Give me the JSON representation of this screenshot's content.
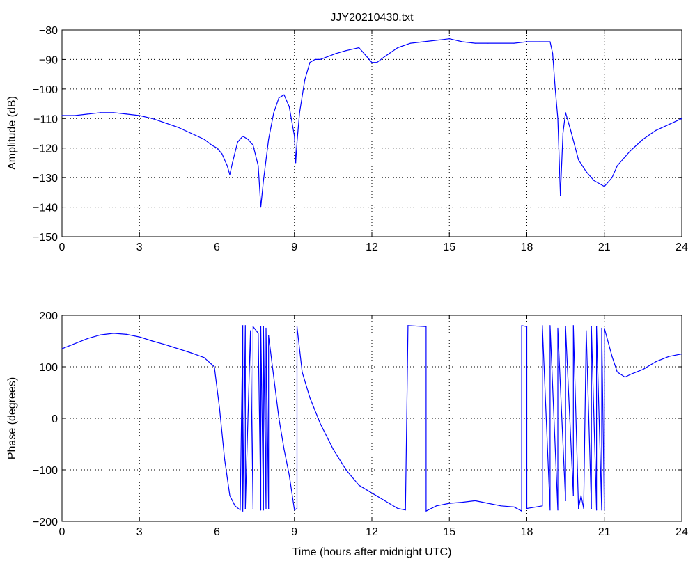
{
  "figure_title": "JJY20210430.txt",
  "colors": {
    "series": "#0000ff",
    "axes": "#000000",
    "background": "#ffffff"
  },
  "chart_data": [
    {
      "type": "line",
      "title": "JJY20210430.txt",
      "xlabel": "",
      "ylabel": "Amplitude (dB)",
      "xlim": [
        0,
        24
      ],
      "ylim": [
        -150,
        -80
      ],
      "xticks": [
        0,
        3,
        6,
        9,
        12,
        15,
        18,
        21,
        24
      ],
      "yticks": [
        -80,
        -90,
        -100,
        -110,
        -120,
        -130,
        -140,
        -150
      ],
      "xtick_labels": [
        "0",
        "3",
        "6",
        "9",
        "12",
        "15",
        "18",
        "21",
        "24"
      ],
      "ytick_labels": [
        "−80",
        "−90",
        "−100",
        "−110",
        "−120",
        "−130",
        "−140",
        "−150"
      ],
      "grid": true,
      "series": [
        {
          "color": "#0000ff",
          "x": [
            0,
            0.5,
            1,
            1.5,
            2,
            2.5,
            3,
            3.5,
            4,
            4.5,
            5,
            5.5,
            5.8,
            6.0,
            6.2,
            6.4,
            6.5,
            6.6,
            6.8,
            7.0,
            7.2,
            7.4,
            7.6,
            7.7,
            7.8,
            8.0,
            8.2,
            8.4,
            8.6,
            8.8,
            9.0,
            9.05,
            9.1,
            9.2,
            9.4,
            9.6,
            9.8,
            10.0,
            10.3,
            10.6,
            11.0,
            11.5,
            12.0,
            12.2,
            12.5,
            13.0,
            13.5,
            14.0,
            14.5,
            15.0,
            15.5,
            16.0,
            16.5,
            17.0,
            17.5,
            18.0,
            18.5,
            18.9,
            19.0,
            19.1,
            19.2,
            19.3,
            19.4,
            19.5,
            19.7,
            20.0,
            20.3,
            20.6,
            21.0,
            21.3,
            21.5,
            22.0,
            22.5,
            23.0,
            23.5,
            24.0
          ],
          "values": [
            -109,
            -109,
            -108.5,
            -108,
            -108,
            -108.5,
            -109,
            -110,
            -111.5,
            -113,
            -115,
            -117,
            -119,
            -120,
            -122,
            -126,
            -129,
            -125,
            -118,
            -116,
            -117,
            -119,
            -126,
            -140,
            -131,
            -117,
            -108,
            -103,
            -102,
            -106,
            -116,
            -125,
            -118,
            -108,
            -97,
            -91,
            -90,
            -90,
            -89,
            -88,
            -87,
            -86,
            -91,
            -91,
            -89,
            -86,
            -84.5,
            -84,
            -83.5,
            -83,
            -84,
            -84.5,
            -84.5,
            -84.5,
            -84.5,
            -84,
            -84,
            -84,
            -88,
            -100,
            -110,
            -136,
            -115,
            -108,
            -114,
            -124,
            -128,
            -131,
            -133,
            -130,
            -126,
            -121,
            -117,
            -114,
            -112,
            -110
          ]
        }
      ]
    },
    {
      "type": "line",
      "title": "",
      "xlabel": "Time (hours after midnight UTC)",
      "ylabel": "Phase (degrees)",
      "xlim": [
        0,
        24
      ],
      "ylim": [
        -200,
        200
      ],
      "xticks": [
        0,
        3,
        6,
        9,
        12,
        15,
        18,
        21,
        24
      ],
      "yticks": [
        200,
        100,
        0,
        -100,
        -200
      ],
      "xtick_labels": [
        "0",
        "3",
        "6",
        "9",
        "12",
        "15",
        "18",
        "21",
        "24"
      ],
      "ytick_labels": [
        "200",
        "100",
        "0",
        "−100",
        "−200"
      ],
      "grid": true,
      "series": [
        {
          "color": "#0000ff",
          "x": [
            0,
            0.5,
            1,
            1.5,
            2,
            2.5,
            3,
            3.5,
            4,
            4.5,
            5,
            5.5,
            5.9,
            6.1,
            6.3,
            6.5,
            6.7,
            6.9,
            7.0,
            7.0,
            7.1,
            7.1,
            7.3,
            7.4,
            7.4,
            7.6,
            7.7,
            7.7,
            7.8,
            7.8,
            7.9,
            7.9,
            8.0,
            8.0,
            8.2,
            8.4,
            8.6,
            8.8,
            9.0,
            9.1,
            9.1,
            9.3,
            9.6,
            10.0,
            10.5,
            11.0,
            11.5,
            12.0,
            12.5,
            13.0,
            13.3,
            13.4,
            13.4,
            14.1,
            14.1,
            14.5,
            15.0,
            15.5,
            16.0,
            16.5,
            17.0,
            17.5,
            17.8,
            17.8,
            18.0,
            18.0,
            18.6,
            18.6,
            18.9,
            18.9,
            19.2,
            19.2,
            19.5,
            19.5,
            19.8,
            19.8,
            20.0,
            20.1,
            20.2,
            20.3,
            20.5,
            20.5,
            20.7,
            20.7,
            20.9,
            20.9,
            21.0,
            21.0,
            21.3,
            21.5,
            21.8,
            22.0,
            22.5,
            23.0,
            23.5,
            24.0
          ],
          "values": [
            135,
            145,
            155,
            162,
            165,
            163,
            158,
            150,
            143,
            135,
            127,
            118,
            100,
            20,
            -80,
            -150,
            -170,
            -178,
            180,
            -180,
            180,
            -175,
            170,
            -175,
            178,
            165,
            -178,
            178,
            -178,
            178,
            -175,
            175,
            -175,
            160,
            80,
            0,
            -60,
            -110,
            -178,
            -175,
            178,
            90,
            40,
            -10,
            -60,
            -100,
            -130,
            -145,
            -160,
            -175,
            -178,
            180,
            180,
            178,
            -180,
            -170,
            -165,
            -163,
            -160,
            -165,
            -170,
            -172,
            -180,
            180,
            178,
            -175,
            -170,
            180,
            -178,
            180,
            -178,
            175,
            -160,
            178,
            -150,
            180,
            -175,
            -150,
            -175,
            170,
            -175,
            178,
            -178,
            178,
            -178,
            175,
            -178,
            175,
            120,
            90,
            80,
            85,
            95,
            110,
            120,
            125
          ]
        }
      ]
    }
  ]
}
